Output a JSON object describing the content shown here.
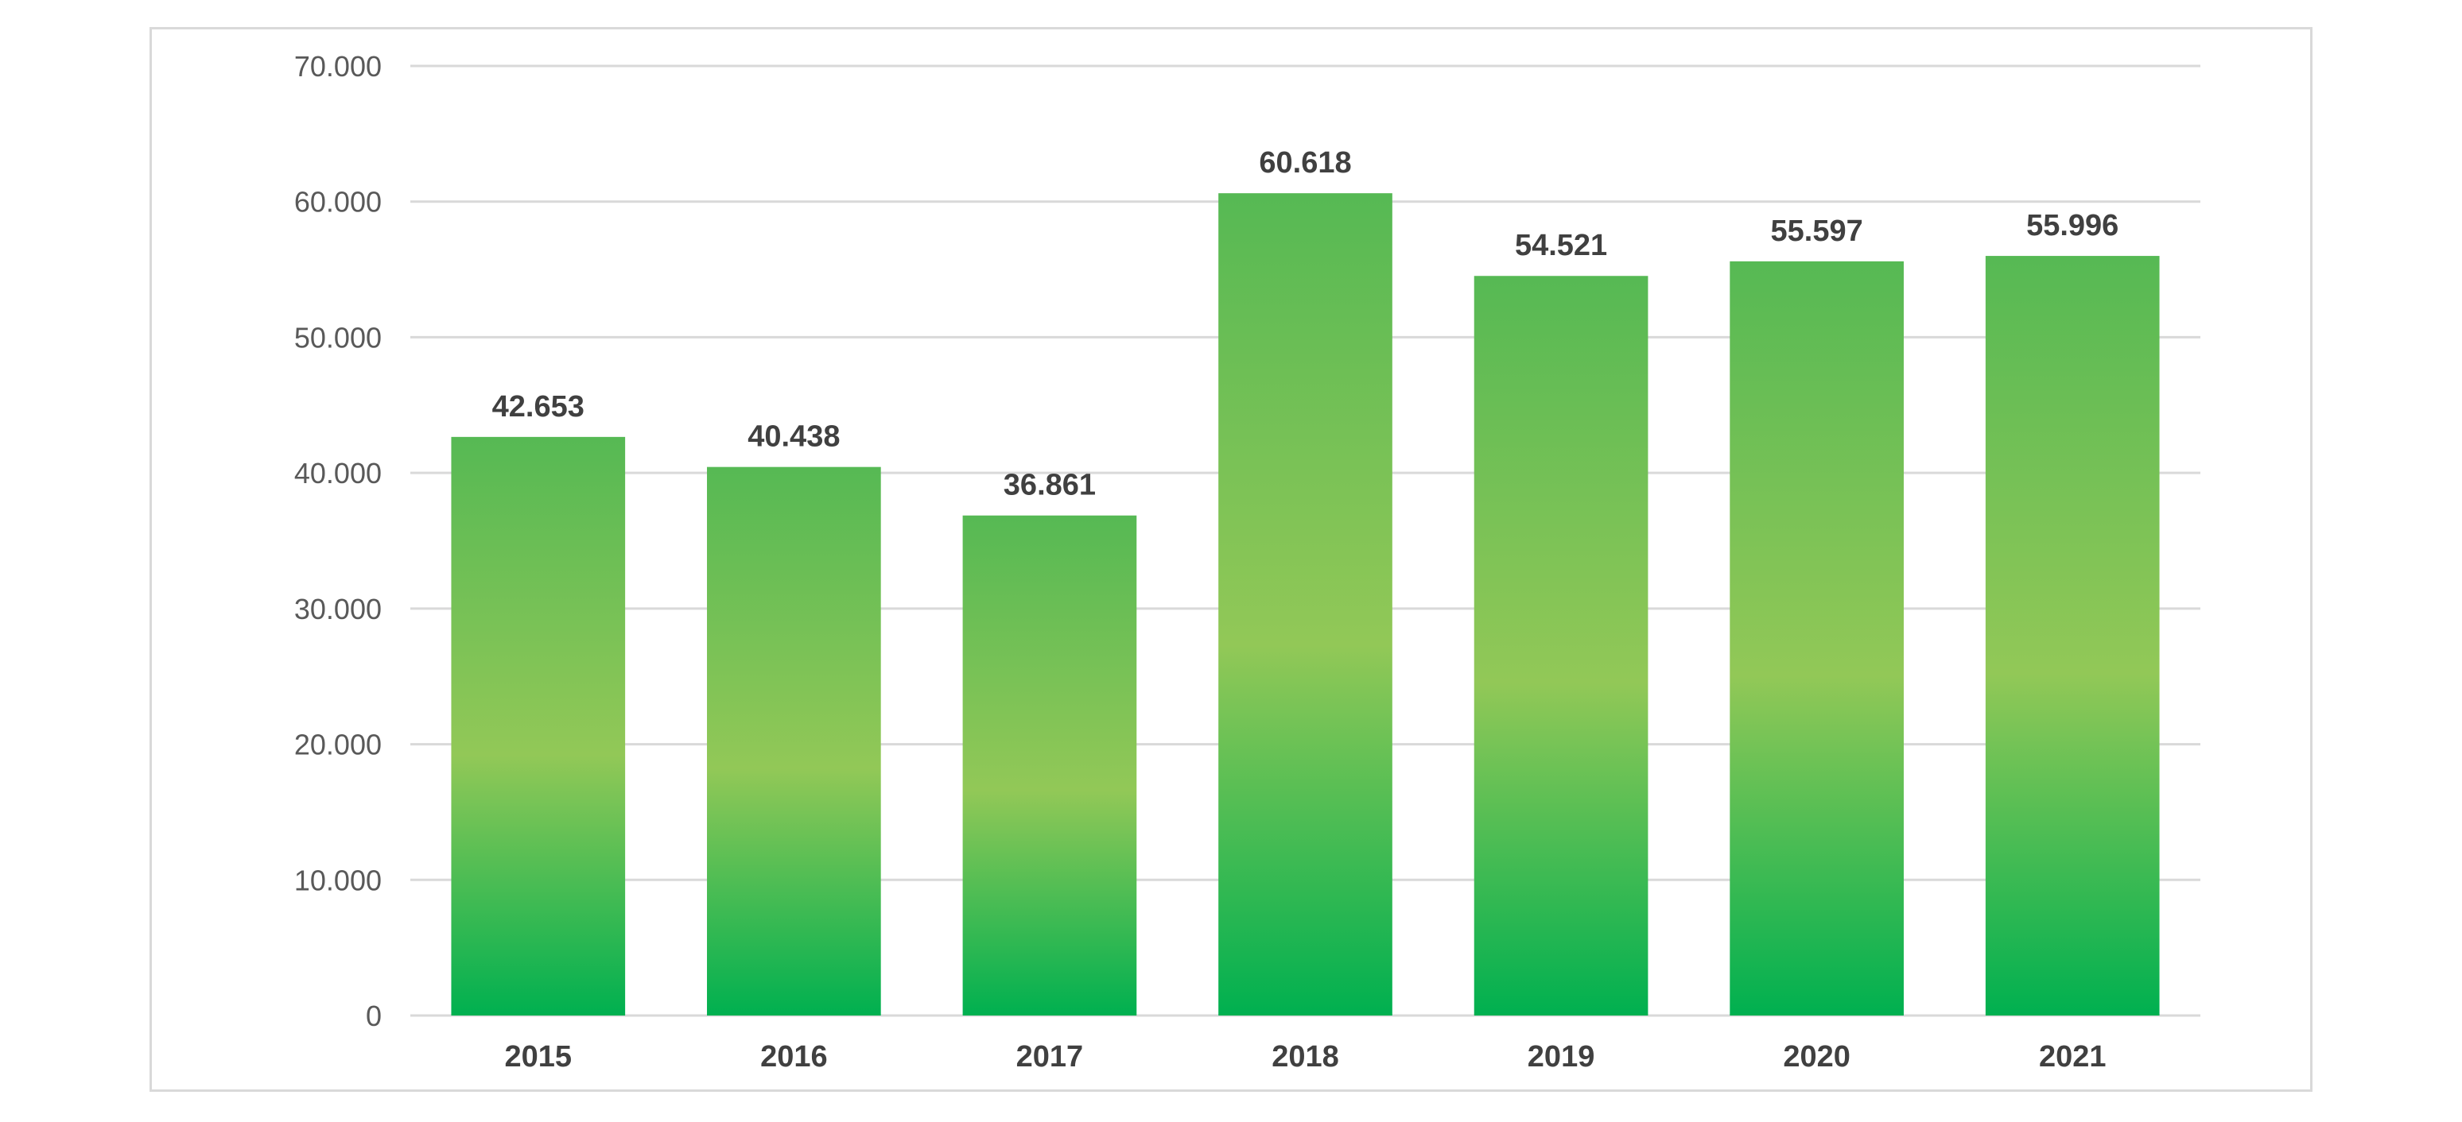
{
  "chart_data": {
    "type": "bar",
    "categories": [
      "2015",
      "2016",
      "2017",
      "2018",
      "2019",
      "2020",
      "2021"
    ],
    "values": [
      42653,
      40438,
      36861,
      60618,
      54521,
      55597,
      55996
    ],
    "value_labels": [
      "42.653",
      "40.438",
      "36.861",
      "60.618",
      "54.521",
      "55.597",
      "55.996"
    ],
    "y_ticks": [
      0,
      10000,
      20000,
      30000,
      40000,
      50000,
      60000,
      70000
    ],
    "y_tick_labels": [
      "0",
      "10.000",
      "20.000",
      "30.000",
      "40.000",
      "50.000",
      "60.000",
      "70.000"
    ],
    "ylim": [
      0,
      70000
    ],
    "title": "",
    "xlabel": "",
    "ylabel": "",
    "grid": true,
    "legend": "none",
    "colors": {
      "bar_edge": "#00b050",
      "bar_mid": "#92c857",
      "gridline": "#d9d9d9",
      "tick_text": "#595959",
      "label_text": "#404040"
    }
  }
}
